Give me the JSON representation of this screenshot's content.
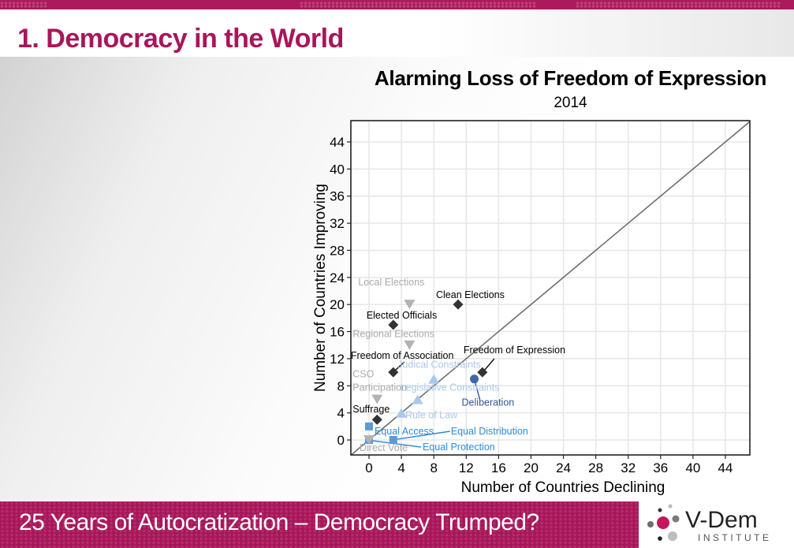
{
  "slide": {
    "title": "1. Democracy in the World",
    "footer_text": "25 Years of Autocratization – Democracy Trumped?",
    "logo_text": "V-Dem",
    "logo_subtext": "INSTITUTE",
    "brand_color": "#a8165a"
  },
  "chart_data": {
    "type": "scatter",
    "title": "Alarming Loss of Freedom of Expression",
    "subtitle": "2014",
    "xlabel": "Number of Countries Declining",
    "ylabel": "Number of Countries Improving",
    "xlim": [
      -3,
      47
    ],
    "ylim": [
      -2,
      48
    ],
    "xticks": [
      0,
      4,
      8,
      12,
      16,
      20,
      24,
      28,
      32,
      36,
      40,
      44
    ],
    "yticks": [
      0,
      4,
      8,
      12,
      16,
      20,
      24,
      28,
      32,
      36,
      40,
      44
    ],
    "grid": true,
    "reference_line": "y = x",
    "points": [
      {
        "label": "Local Elections",
        "x": 5,
        "y": 20,
        "shape": "triangle-down",
        "color": "#b3b3b3"
      },
      {
        "label": "Clean Elections",
        "x": 11,
        "y": 20,
        "shape": "diamond",
        "color": "#333333"
      },
      {
        "label": "Elected Officials",
        "x": 3,
        "y": 17,
        "shape": "diamond",
        "color": "#333333"
      },
      {
        "label": "Regional Elections",
        "x": 5,
        "y": 14,
        "shape": "triangle-down",
        "color": "#b3b3b3"
      },
      {
        "label": "Freedom of Association",
        "x": 3,
        "y": 10,
        "shape": "diamond",
        "color": "#333333"
      },
      {
        "label": "Freedom of Expression",
        "x": 14,
        "y": 10,
        "shape": "diamond",
        "color": "#333333"
      },
      {
        "label": "Judical Constraints",
        "x": 8,
        "y": 9,
        "shape": "triangle-up",
        "color": "#a9c8ea"
      },
      {
        "label": "Legislative Constraints",
        "x": 6,
        "y": 6,
        "shape": "triangle-up",
        "color": "#a9c8ea"
      },
      {
        "label": "Deliberation",
        "x": 13,
        "y": 9,
        "shape": "circle",
        "color": "#3f66a8"
      },
      {
        "label": "CSO Participation",
        "x": 1,
        "y": 6,
        "shape": "triangle-down",
        "color": "#b3b3b3"
      },
      {
        "label": "Rule of Law",
        "x": 4,
        "y": 4,
        "shape": "triangle-up",
        "color": "#a9c8ea"
      },
      {
        "label": "Suffrage",
        "x": 1,
        "y": 3,
        "shape": "diamond",
        "color": "#333333"
      },
      {
        "label": "Equal Access",
        "x": 0,
        "y": 2,
        "shape": "square",
        "color": "#5b9bd5"
      },
      {
        "label": "Equal Distribution",
        "x": 3,
        "y": 0,
        "shape": "square",
        "color": "#5b9bd5"
      },
      {
        "label": "Equal Protection",
        "x": 0,
        "y": 0,
        "shape": "square",
        "color": "#5b9bd5"
      },
      {
        "label": "Direct Vote",
        "x": 0,
        "y": 0,
        "shape": "triangle-down",
        "color": "#b3b3b3"
      }
    ]
  }
}
